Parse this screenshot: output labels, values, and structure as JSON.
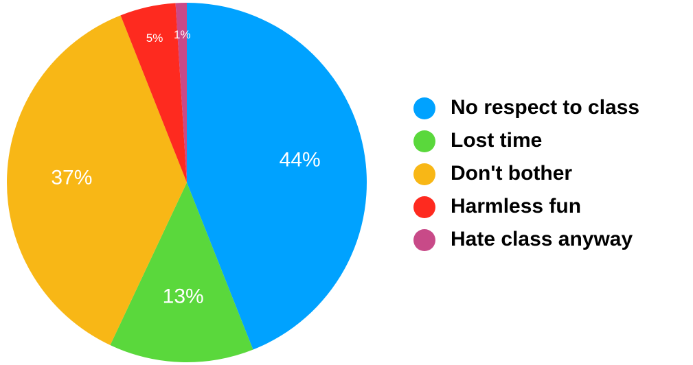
{
  "chart_data": {
    "type": "pie",
    "title": "",
    "slices": [
      {
        "name": "No respect to class",
        "value": 44,
        "label": "44%",
        "color": "#00a2ff"
      },
      {
        "name": "Lost time",
        "value": 13,
        "label": "13%",
        "color": "#5ad83c"
      },
      {
        "name": "Don't bother",
        "value": 37,
        "label": "37%",
        "color": "#f8b716"
      },
      {
        "name": "Harmless fun",
        "value": 5,
        "label": "5%",
        "color": "#fe2a1f"
      },
      {
        "name": "Hate class anyway",
        "value": 1,
        "label": "1%",
        "color": "#c84a88"
      }
    ],
    "legend_position": "right",
    "start": "top",
    "direction": "clockwise"
  }
}
